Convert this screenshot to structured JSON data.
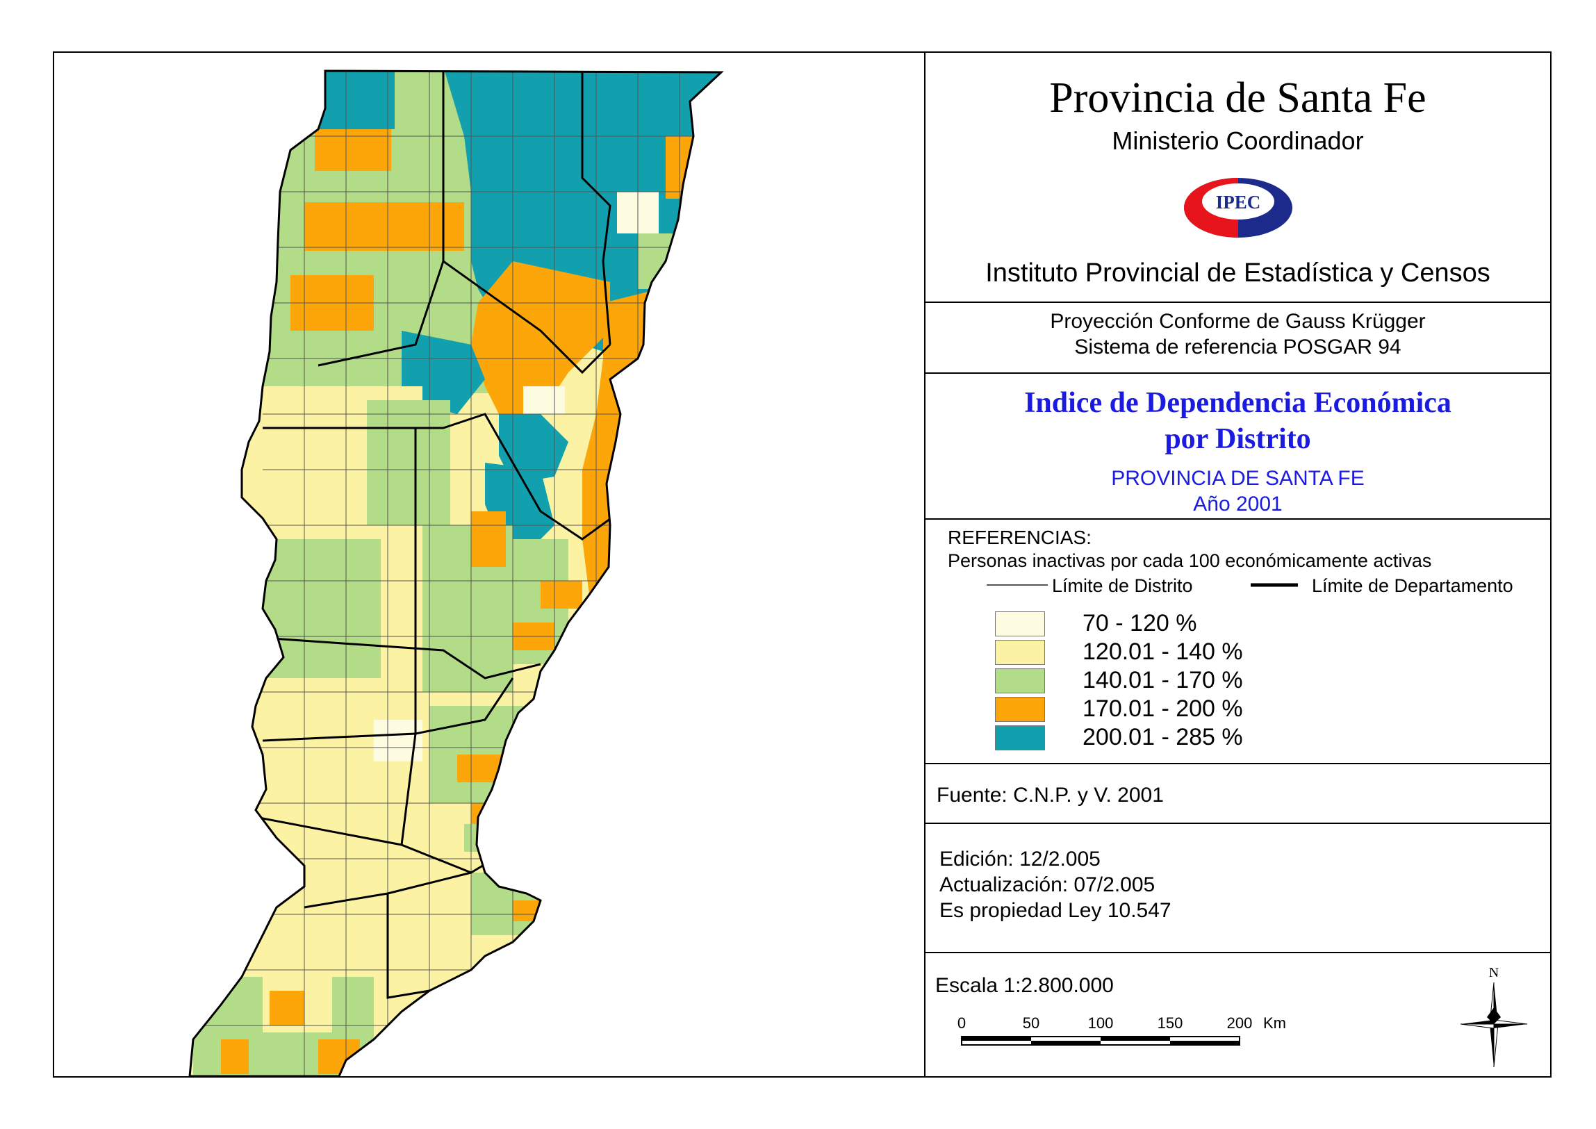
{
  "header": {
    "title": "Provincia de Santa Fe",
    "ministry": "Ministerio Coordinador",
    "logo_text": "IPEC",
    "institute": "Instituto Provincial de Estadística y Censos"
  },
  "projection": {
    "line1": "Proyección Conforme de Gauss Krügger",
    "line2": "Sistema de referencia POSGAR 94"
  },
  "map_title": {
    "line1": "Indice de Dependencia Económica",
    "line2": "por Distrito",
    "province": "PROVINCIA DE SANTA FE",
    "year": "Año 2001"
  },
  "references": {
    "heading": "REFERENCIAS:",
    "description": "Personas inactivas por cada 100 económicamente activas",
    "district_limit": "Límite de Distrito",
    "department_limit": "Límite de Departamento",
    "classes": [
      {
        "label": "70 - 120 %",
        "color": "#fdfbe0"
      },
      {
        "label": "120.01 - 140 %",
        "color": "#fbf2a4"
      },
      {
        "label": "140.01 - 170 %",
        "color": "#b3dc88"
      },
      {
        "label": "170.01 - 200 %",
        "color": "#fca60a"
      },
      {
        "label": "200.01 - 285 %",
        "color": "#12a0ae"
      }
    ]
  },
  "source": "Fuente:  C.N.P. y V. 2001",
  "edition": {
    "edition": "Edición:  12/2.005",
    "update": "Actualización:  07/2.005",
    "property": "Es propiedad Ley 10.547"
  },
  "scale": {
    "text": "Escala 1:2.800.000",
    "ticks": [
      "0",
      "50",
      "100",
      "150",
      "200"
    ],
    "unit": "Km"
  },
  "north_label": "N",
  "colors": {
    "title_blue": "#1a1ae0",
    "logo_red": "#e8141c",
    "logo_navy": "#1c2a8c"
  }
}
